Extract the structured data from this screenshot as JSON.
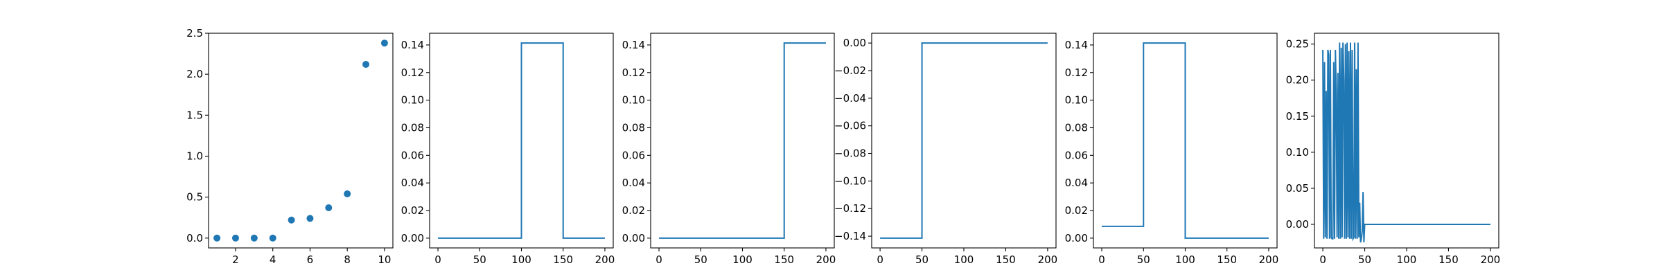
{
  "style": {
    "series_color": "#1f77b4",
    "axis_color": "#000000",
    "background": "#ffffff"
  },
  "chart_data": [
    {
      "type": "scatter",
      "title": "",
      "xlabel": "",
      "ylabel": "",
      "xlim": [
        0.55,
        10.45
      ],
      "ylim": [
        -0.12,
        2.5
      ],
      "xticks": [
        2,
        4,
        6,
        8,
        10
      ],
      "xtick_labels": [
        "2",
        "4",
        "6",
        "8",
        "10"
      ],
      "yticks": [
        0.0,
        0.5,
        1.0,
        1.5,
        2.0,
        2.5
      ],
      "ytick_labels": [
        "0.0",
        "0.5",
        "1.0",
        "1.5",
        "2.0",
        "2.5"
      ],
      "series": [
        {
          "x": [
            1,
            2,
            3,
            4,
            5,
            6,
            7,
            8,
            9,
            10
          ],
          "y": [
            0.0,
            0.0,
            0.0,
            0.0,
            0.22,
            0.24,
            0.37,
            0.54,
            2.12,
            2.38
          ]
        }
      ]
    },
    {
      "type": "line",
      "title": "",
      "xlabel": "",
      "ylabel": "",
      "xlim": [
        -10,
        210
      ],
      "ylim": [
        -0.0071,
        0.1485
      ],
      "xticks": [
        0,
        50,
        100,
        150,
        200
      ],
      "xtick_labels": [
        "0",
        "50",
        "100",
        "150",
        "200"
      ],
      "yticks": [
        0.0,
        0.02,
        0.04,
        0.06,
        0.08,
        0.1,
        0.12,
        0.14
      ],
      "ytick_labels": [
        "0.00",
        "0.02",
        "0.04",
        "0.06",
        "0.08",
        "0.10",
        "0.12",
        "0.14"
      ],
      "series": [
        {
          "x": [
            0,
            100,
            100,
            150,
            150,
            200
          ],
          "y": [
            0,
            0,
            0.1414,
            0.1414,
            0,
            0
          ]
        }
      ]
    },
    {
      "type": "line",
      "title": "",
      "xlabel": "",
      "ylabel": "",
      "xlim": [
        -10,
        210
      ],
      "ylim": [
        -0.0071,
        0.1485
      ],
      "xticks": [
        0,
        50,
        100,
        150,
        200
      ],
      "xtick_labels": [
        "0",
        "50",
        "100",
        "150",
        "200"
      ],
      "yticks": [
        0.0,
        0.02,
        0.04,
        0.06,
        0.08,
        0.1,
        0.12,
        0.14
      ],
      "ytick_labels": [
        "0.00",
        "0.02",
        "0.04",
        "0.06",
        "0.08",
        "0.10",
        "0.12",
        "0.14"
      ],
      "series": [
        {
          "x": [
            0,
            150,
            150,
            200
          ],
          "y": [
            0,
            0,
            0.1414,
            0.1414
          ]
        }
      ]
    },
    {
      "type": "line",
      "title": "",
      "xlabel": "",
      "ylabel": "",
      "xlim": [
        -10,
        210
      ],
      "ylim": [
        -0.1485,
        0.0071
      ],
      "xticks": [
        0,
        50,
        100,
        150,
        200
      ],
      "xtick_labels": [
        "0",
        "50",
        "100",
        "150",
        "200"
      ],
      "yticks": [
        0.0,
        -0.02,
        -0.04,
        -0.06,
        -0.08,
        -0.1,
        -0.12,
        -0.14
      ],
      "ytick_labels": [
        "0.00",
        "−0.02",
        "−0.04",
        "−0.06",
        "−0.08",
        "−0.10",
        "−0.12",
        "−0.14"
      ],
      "series": [
        {
          "x": [
            0,
            50,
            50,
            200
          ],
          "y": [
            -0.1414,
            -0.1414,
            0,
            0
          ]
        }
      ]
    },
    {
      "type": "line",
      "title": "",
      "xlabel": "",
      "ylabel": "",
      "xlim": [
        -10,
        210
      ],
      "ylim": [
        -0.0071,
        0.1485
      ],
      "xticks": [
        0,
        50,
        100,
        150,
        200
      ],
      "xtick_labels": [
        "0",
        "50",
        "100",
        "150",
        "200"
      ],
      "yticks": [
        0.0,
        0.02,
        0.04,
        0.06,
        0.08,
        0.1,
        0.12,
        0.14
      ],
      "ytick_labels": [
        "0.00",
        "0.02",
        "0.04",
        "0.06",
        "0.08",
        "0.10",
        "0.12",
        "0.14"
      ],
      "series": [
        {
          "x": [
            0,
            50,
            50,
            100,
            100,
            200
          ],
          "y": [
            0.0085,
            0.0085,
            0.1414,
            0.1414,
            0,
            0
          ]
        }
      ]
    },
    {
      "type": "line",
      "title": "",
      "xlabel": "",
      "ylabel": "",
      "xlim": [
        -10,
        210
      ],
      "ylim": [
        -0.0327,
        0.265
      ],
      "xticks": [
        0,
        50,
        100,
        150,
        200
      ],
      "xtick_labels": [
        "0",
        "50",
        "100",
        "150",
        "200"
      ],
      "yticks": [
        0.0,
        0.05,
        0.1,
        0.15,
        0.2,
        0.25
      ],
      "ytick_labels": [
        "0.00",
        "0.05",
        "0.10",
        "0.15",
        "0.20",
        "0.25"
      ],
      "series": [
        {
          "x": [
            0,
            1,
            2,
            3,
            4,
            5,
            6,
            7,
            8,
            9,
            10,
            11,
            12,
            13,
            14,
            15,
            16,
            17,
            18,
            19,
            20,
            21,
            22,
            23,
            24,
            25,
            26,
            27,
            28,
            29,
            30,
            31,
            32,
            33,
            34,
            35,
            36,
            37,
            38,
            39,
            40,
            41,
            42,
            43,
            44,
            45,
            46,
            47,
            48,
            49,
            50,
            51,
            52,
            200
          ],
          "y": [
            0.242,
            -0.02,
            0.225,
            -0.018,
            0.185,
            -0.02,
            0.242,
            0.235,
            -0.02,
            0.242,
            -0.018,
            -0.02,
            -0.02,
            0.225,
            -0.02,
            0.242,
            0.18,
            -0.018,
            0.21,
            -0.02,
            0.252,
            -0.02,
            0.245,
            -0.018,
            0.252,
            0.2,
            -0.02,
            0.25,
            -0.02,
            0.252,
            -0.018,
            0.24,
            -0.02,
            0.252,
            -0.02,
            0.242,
            -0.02,
            -0.018,
            0.252,
            -0.02,
            0.215,
            -0.02,
            0.252,
            -0.018,
            0.03,
            -0.025,
            -0.02,
            -0.01,
            0.045,
            -0.025,
            0.0,
            0.0,
            0.0,
            0.0
          ]
        }
      ]
    }
  ]
}
